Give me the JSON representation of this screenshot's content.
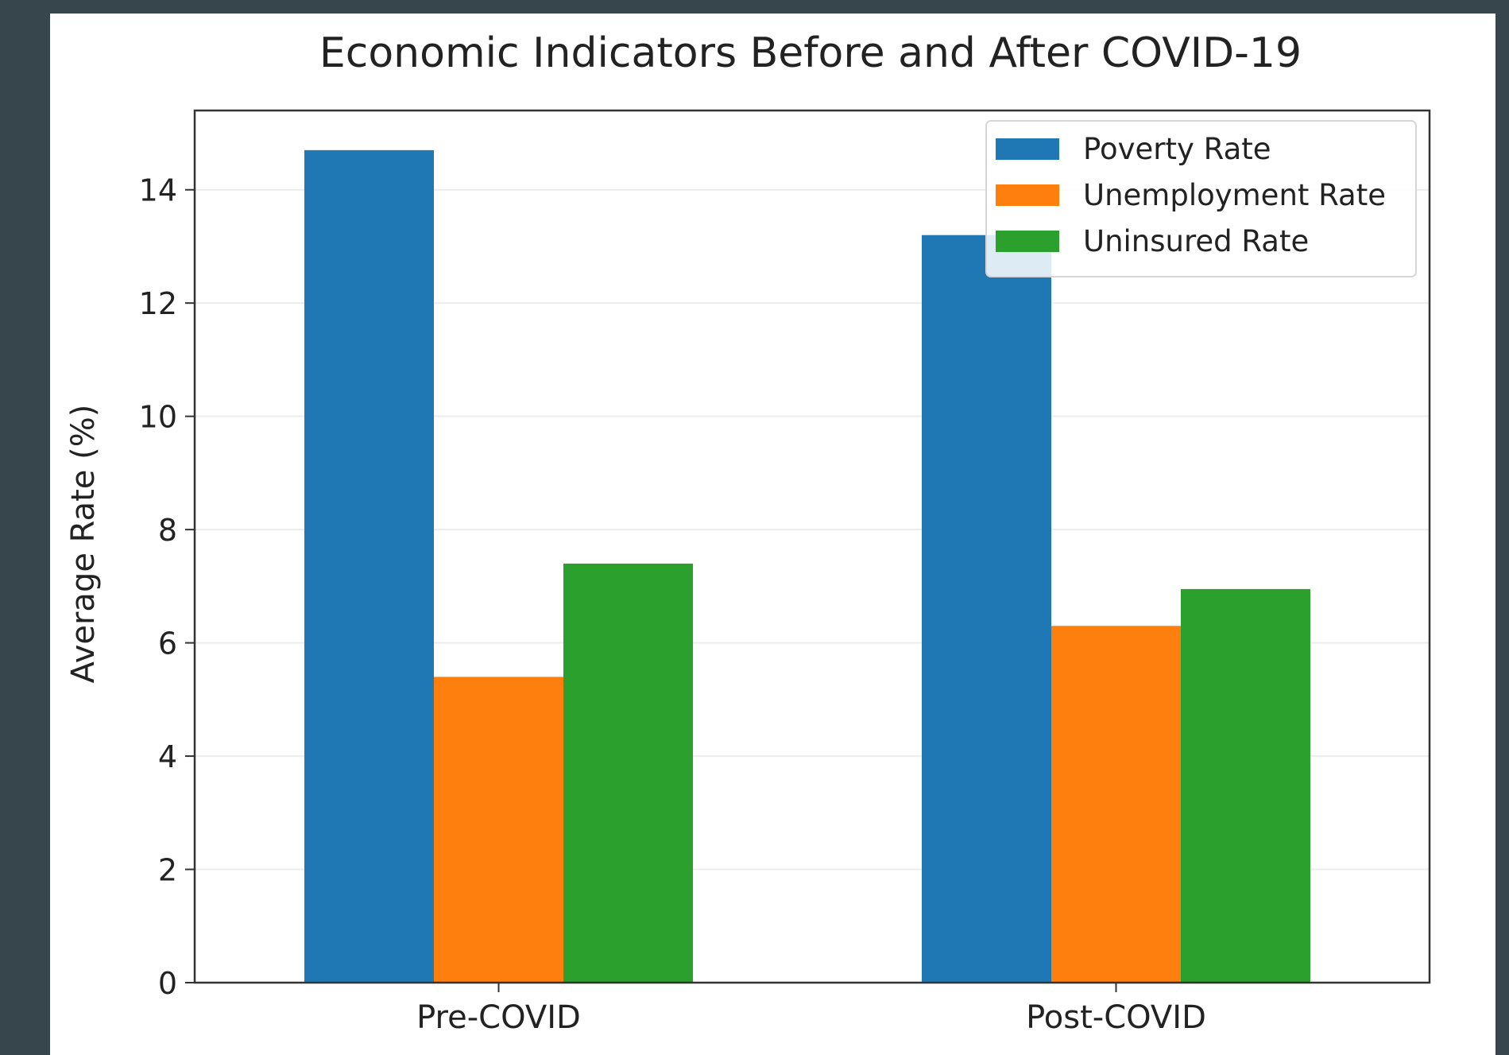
{
  "chart_data": {
    "type": "bar",
    "title": "Economic Indicators Before and After COVID-19",
    "xlabel": "",
    "ylabel": "Average Rate (%)",
    "categories": [
      "Pre-COVID",
      "Post-COVID"
    ],
    "series": [
      {
        "name": "Poverty Rate",
        "color": "#1f77b4",
        "values": [
          14.7,
          13.2
        ]
      },
      {
        "name": "Unemployment Rate",
        "color": "#ff7f0e",
        "values": [
          5.4,
          6.3
        ]
      },
      {
        "name": "Uninsured Rate",
        "color": "#2ca02c",
        "values": [
          7.4,
          6.95
        ]
      }
    ],
    "ylim": [
      0,
      15.4
    ],
    "yticks": [
      0,
      2,
      4,
      6,
      8,
      10,
      12,
      14
    ],
    "grid": true,
    "legend": "top-right"
  }
}
